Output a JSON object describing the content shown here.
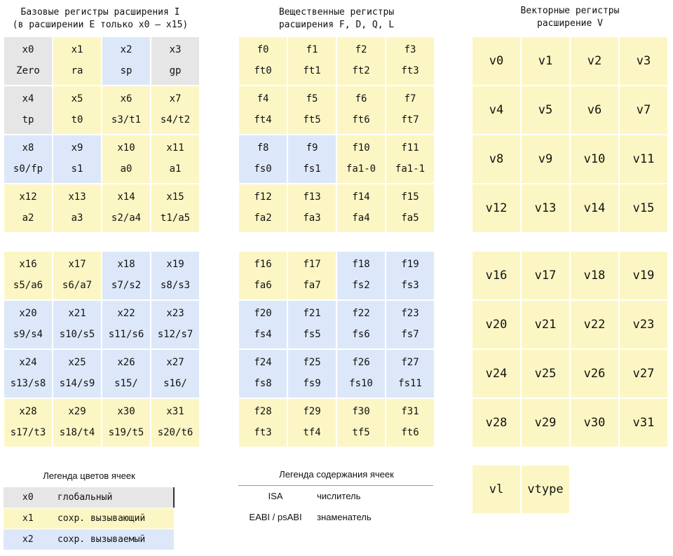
{
  "int_regs": {
    "title": [
      "Базовые регистры расширения I",
      "(в расширении E только x0 — x15)"
    ],
    "cells": [
      [
        "x0",
        "Zero",
        "#e6e6e6"
      ],
      [
        "x1",
        "ra",
        "#fcf6c4"
      ],
      [
        "x2",
        "sp",
        "#dce8fa"
      ],
      [
        "x3",
        "gp",
        "#e6e6e6"
      ],
      [
        "x4",
        "tp",
        "#e6e6e6"
      ],
      [
        "x5",
        "t0",
        "#fcf6c4"
      ],
      [
        "x6",
        "s3/t1",
        "#fcf6c4"
      ],
      [
        "x7",
        "s4/t2",
        "#fcf6c4"
      ],
      [
        "x8",
        "s0/fp",
        "#dce8fa"
      ],
      [
        "x9",
        "s1",
        "#dce8fa"
      ],
      [
        "x10",
        "a0",
        "#fcf6c4"
      ],
      [
        "x11",
        "a1",
        "#fcf6c4"
      ],
      [
        "x12",
        "a2",
        "#fcf6c4"
      ],
      [
        "x13",
        "a3",
        "#fcf6c4"
      ],
      [
        "x14",
        "s2/a4",
        "#fcf6c4"
      ],
      [
        "x15",
        "t1/a5",
        "#fcf6c4"
      ],
      [
        "x16",
        "s5/a6",
        "#fcf6c4"
      ],
      [
        "x17",
        "s6/a7",
        "#fcf6c4"
      ],
      [
        "x18",
        "s7/s2",
        "#dce8fa"
      ],
      [
        "x19",
        "s8/s3",
        "#dce8fa"
      ],
      [
        "x20",
        "s9/s4",
        "#dce8fa"
      ],
      [
        "x21",
        "s10/s5",
        "#dce8fa"
      ],
      [
        "x22",
        "s11/s6",
        "#dce8fa"
      ],
      [
        "x23",
        "s12/s7",
        "#dce8fa"
      ],
      [
        "x24",
        "s13/s8",
        "#dce8fa"
      ],
      [
        "x25",
        "s14/s9",
        "#dce8fa"
      ],
      [
        "x26",
        "s15/",
        "#dce8fa"
      ],
      [
        "x27",
        "s16/",
        "#dce8fa"
      ],
      [
        "x28",
        "s17/t3",
        "#fcf6c4"
      ],
      [
        "x29",
        "s18/t4",
        "#fcf6c4"
      ],
      [
        "x30",
        "s19/t5",
        "#fcf6c4"
      ],
      [
        "x31",
        "s20/t6",
        "#fcf6c4"
      ]
    ]
  },
  "float_regs": {
    "title": [
      "Вещественные регистры",
      "расширения F, D, Q, L"
    ],
    "cells": [
      [
        "f0",
        "ft0",
        "#fcf6c4"
      ],
      [
        "f1",
        "ft1",
        "#fcf6c4"
      ],
      [
        "f2",
        "ft2",
        "#fcf6c4"
      ],
      [
        "f3",
        "ft3",
        "#fcf6c4"
      ],
      [
        "f4",
        "ft4",
        "#fcf6c4"
      ],
      [
        "f5",
        "ft5",
        "#fcf6c4"
      ],
      [
        "f6",
        "ft6",
        "#fcf6c4"
      ],
      [
        "f7",
        "ft7",
        "#fcf6c4"
      ],
      [
        "f8",
        "fs0",
        "#dce8fa"
      ],
      [
        "f9",
        "fs1",
        "#dce8fa"
      ],
      [
        "f10",
        "fa1-0",
        "#fcf6c4"
      ],
      [
        "f11",
        "fa1-1",
        "#fcf6c4"
      ],
      [
        "f12",
        "fa2",
        "#fcf6c4"
      ],
      [
        "f13",
        "fa3",
        "#fcf6c4"
      ],
      [
        "f14",
        "fa4",
        "#fcf6c4"
      ],
      [
        "f15",
        "fa5",
        "#fcf6c4"
      ],
      [
        "f16",
        "fa6",
        "#fcf6c4"
      ],
      [
        "f17",
        "fa7",
        "#fcf6c4"
      ],
      [
        "f18",
        "fs2",
        "#dce8fa"
      ],
      [
        "f19",
        "fs3",
        "#dce8fa"
      ],
      [
        "f20",
        "fs4",
        "#dce8fa"
      ],
      [
        "f21",
        "fs5",
        "#dce8fa"
      ],
      [
        "f22",
        "fs6",
        "#dce8fa"
      ],
      [
        "f23",
        "fs7",
        "#dce8fa"
      ],
      [
        "f24",
        "fs8",
        "#dce8fa"
      ],
      [
        "f25",
        "fs9",
        "#dce8fa"
      ],
      [
        "f26",
        "fs10",
        "#dce8fa"
      ],
      [
        "f27",
        "fs11",
        "#dce8fa"
      ],
      [
        "f28",
        "ft3",
        "#fcf6c4"
      ],
      [
        "f29",
        "tf4",
        "#fcf6c4"
      ],
      [
        "f30",
        "tf5",
        "#fcf6c4"
      ],
      [
        "f31",
        "ft6",
        "#fcf6c4"
      ]
    ]
  },
  "vector_regs": {
    "title": [
      "Векторные регистры",
      "расширение V"
    ],
    "color": "#fcf6c4",
    "cells": [
      "v0",
      "v1",
      "v2",
      "v3",
      "v4",
      "v5",
      "v6",
      "v7",
      "v8",
      "v9",
      "v10",
      "v11",
      "v12",
      "v13",
      "v14",
      "v15",
      "v16",
      "v17",
      "v18",
      "v19",
      "v20",
      "v21",
      "v22",
      "v23",
      "v24",
      "v25",
      "v26",
      "v27",
      "v28",
      "v29",
      "v30",
      "v31"
    ],
    "extra": [
      "vl",
      "vtype"
    ]
  },
  "legend_colors": {
    "title": "Легенда цветов ячеек",
    "rows": [
      [
        "x0",
        "глобальный",
        "#e6e6e6"
      ],
      [
        "x1",
        "сохр. вызывающий",
        "#fcf6c4"
      ],
      [
        "x2",
        "сохр. вызываемый",
        "#dce8fa"
      ]
    ]
  },
  "legend_content": {
    "title": "Легенда содержания ячеек",
    "rows": [
      [
        "ISA",
        "числитель"
      ],
      [
        "EABI / psABI",
        "знаменатель"
      ]
    ]
  }
}
